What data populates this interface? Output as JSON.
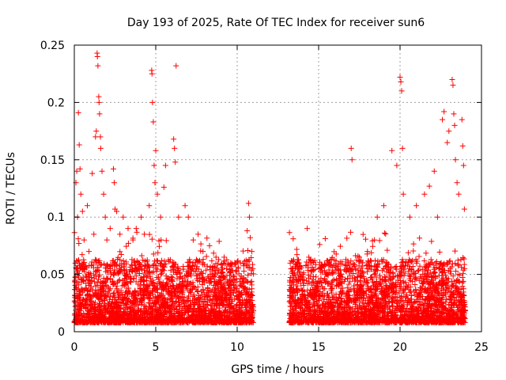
{
  "chart_data": {
    "type": "scatter",
    "title": "Day 193 of 2025, Rate Of TEC Index for receiver sun6",
    "xlabel": "GPS time / hours",
    "ylabel": "ROTI / TECUs",
    "xlim": [
      0,
      25
    ],
    "ylim": [
      0,
      0.25
    ],
    "xticks": [
      0,
      5,
      10,
      15,
      20,
      25
    ],
    "yticks": [
      0,
      0.05,
      0.1,
      0.15,
      0.2,
      0.25
    ],
    "xtick_labels": [
      "0",
      "5",
      "10",
      "15",
      "20",
      "25"
    ],
    "ytick_labels": [
      "0",
      "0.05",
      "0.1",
      "0.15",
      "0.2",
      "0.25"
    ],
    "grid": true,
    "marker": "plus",
    "color": "#ff0000",
    "coverage_hours": [
      [
        0,
        11.0
      ],
      [
        13.2,
        24.0
      ]
    ],
    "data_gap_hours": [
      11.0,
      13.2
    ],
    "series": [
      {
        "points": [
          [
            0.1,
            0.13
          ],
          [
            0.15,
            0.14
          ],
          [
            0.2,
            0.1
          ],
          [
            0.25,
            0.191
          ],
          [
            0.3,
            0.163
          ],
          [
            0.35,
            0.142
          ],
          [
            0.4,
            0.12
          ],
          [
            0.5,
            0.105
          ],
          [
            0.6,
            0.08
          ],
          [
            0.8,
            0.11
          ],
          [
            0.9,
            0.07
          ],
          [
            1.1,
            0.138
          ],
          [
            1.2,
            0.085
          ],
          [
            1.3,
            0.17
          ],
          [
            1.35,
            0.175
          ],
          [
            1.4,
            0.243
          ],
          [
            1.42,
            0.24
          ],
          [
            1.45,
            0.232
          ],
          [
            1.5,
            0.205
          ],
          [
            1.52,
            0.2
          ],
          [
            1.55,
            0.19
          ],
          [
            1.6,
            0.17
          ],
          [
            1.62,
            0.16
          ],
          [
            1.7,
            0.14
          ],
          [
            1.8,
            0.12
          ],
          [
            1.9,
            0.1
          ],
          [
            2.0,
            0.08
          ],
          [
            2.2,
            0.09
          ],
          [
            2.4,
            0.142
          ],
          [
            2.45,
            0.13
          ],
          [
            2.5,
            0.107
          ],
          [
            2.6,
            0.105
          ],
          [
            2.8,
            0.085
          ],
          [
            3.0,
            0.1
          ],
          [
            3.3,
            0.09
          ],
          [
            3.6,
            0.08
          ],
          [
            3.8,
            0.09
          ],
          [
            4.1,
            0.1
          ],
          [
            4.3,
            0.085
          ],
          [
            4.6,
            0.11
          ],
          [
            4.75,
            0.228
          ],
          [
            4.77,
            0.225
          ],
          [
            4.8,
            0.2
          ],
          [
            4.85,
            0.183
          ],
          [
            4.9,
            0.145
          ],
          [
            4.95,
            0.13
          ],
          [
            5.0,
            0.158
          ],
          [
            5.1,
            0.12
          ],
          [
            5.3,
            0.1
          ],
          [
            5.5,
            0.126
          ],
          [
            5.6,
            0.145
          ],
          [
            6.1,
            0.168
          ],
          [
            6.15,
            0.16
          ],
          [
            6.2,
            0.148
          ],
          [
            6.25,
            0.232
          ],
          [
            6.4,
            0.1
          ],
          [
            6.8,
            0.11
          ],
          [
            7.0,
            0.1
          ],
          [
            7.3,
            0.08
          ],
          [
            7.6,
            0.085
          ],
          [
            7.9,
            0.07
          ],
          [
            8.3,
            0.075
          ],
          [
            8.7,
            0.065
          ],
          [
            9.2,
            0.065
          ],
          [
            9.6,
            0.06
          ],
          [
            10.2,
            0.06
          ],
          [
            10.7,
            0.112
          ],
          [
            10.75,
            0.1
          ],
          [
            10.8,
            0.082
          ],
          [
            10.9,
            0.07
          ],
          [
            13.3,
            0.055
          ],
          [
            13.8,
            0.06
          ],
          [
            14.3,
            0.09
          ],
          [
            14.4,
            0.065
          ],
          [
            15.0,
            0.055
          ],
          [
            15.5,
            0.05
          ],
          [
            16.2,
            0.055
          ],
          [
            16.8,
            0.06
          ],
          [
            17.0,
            0.16
          ],
          [
            17.05,
            0.15
          ],
          [
            17.5,
            0.065
          ],
          [
            18.0,
            0.07
          ],
          [
            18.6,
            0.1
          ],
          [
            19.0,
            0.11
          ],
          [
            19.5,
            0.158
          ],
          [
            19.8,
            0.145
          ],
          [
            20.0,
            0.222
          ],
          [
            20.05,
            0.218
          ],
          [
            20.1,
            0.21
          ],
          [
            20.15,
            0.16
          ],
          [
            20.2,
            0.12
          ],
          [
            20.6,
            0.1
          ],
          [
            21.0,
            0.11
          ],
          [
            21.5,
            0.12
          ],
          [
            21.8,
            0.127
          ],
          [
            22.1,
            0.14
          ],
          [
            22.3,
            0.1
          ],
          [
            22.6,
            0.185
          ],
          [
            22.7,
            0.192
          ],
          [
            22.9,
            0.165
          ],
          [
            23.0,
            0.175
          ],
          [
            23.2,
            0.22
          ],
          [
            23.25,
            0.215
          ],
          [
            23.3,
            0.19
          ],
          [
            23.35,
            0.18
          ],
          [
            23.4,
            0.15
          ],
          [
            23.5,
            0.13
          ],
          [
            23.6,
            0.12
          ],
          [
            23.8,
            0.185
          ],
          [
            23.85,
            0.162
          ],
          [
            23.9,
            0.145
          ],
          [
            23.95,
            0.107
          ]
        ]
      }
    ]
  }
}
